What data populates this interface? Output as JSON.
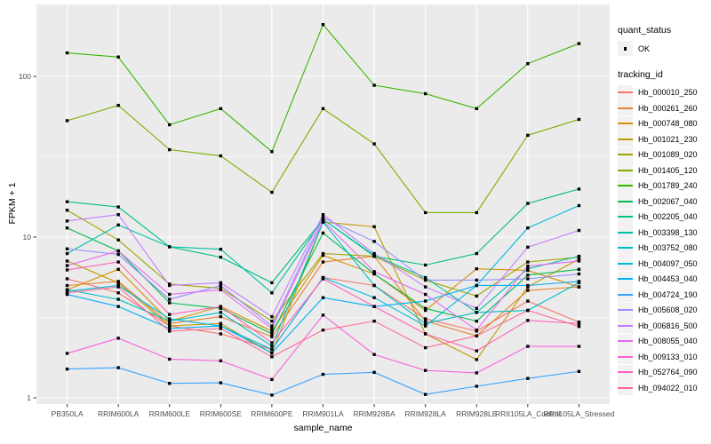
{
  "figure": {
    "panel_bg": "#EBEBEB",
    "grid_color": "#FFFFFF",
    "tick_mark_color": "#333333",
    "tick_label_color": "#4D4D4D",
    "text_color": "#000000"
  },
  "legend": {
    "quant_status": {
      "title": "quant_status",
      "items": [
        {
          "label": "OK",
          "marker": "black-square"
        }
      ]
    },
    "tracking_id": {
      "title": "tracking_id"
    }
  },
  "chart_data": {
    "type": "line",
    "title": "",
    "xlabel": "sample_name",
    "ylabel": "FPKM + 1",
    "y_scale": "log10",
    "y_ticks": [
      "1",
      "10",
      "100"
    ],
    "y_tick_values": [
      1,
      10,
      100
    ],
    "y_minor_values": [
      3.1623,
      31.6228
    ],
    "ylim": [
      0.92,
      255
    ],
    "grid": true,
    "legend_position": "right",
    "marker": "black-square",
    "quant_status": "OK",
    "categories": [
      "PB350LA",
      "RRIM600LA",
      "RRIM600LE",
      "RRIM600SE",
      "RRIM600PE",
      "RRIM901LA",
      "RRIM928BA",
      "RRIM928LA",
      "RRIM928LE",
      "RRII105LA_Control",
      "RRII105LA_Stressed"
    ],
    "series": [
      {
        "name": "Hb_000010_250",
        "color": "#F8766D",
        "values": [
          5.5,
          4.5,
          2.8,
          2.5,
          2.0,
          5.6,
          5.0,
          3.1,
          2.6,
          4.0,
          2.96
        ]
      },
      {
        "name": "Hb_000261_260",
        "color": "#EA8331",
        "values": [
          5.0,
          5.3,
          2.9,
          3.2,
          2.4,
          7.0,
          7.6,
          3.0,
          2.43,
          4.66,
          4.9
        ]
      },
      {
        "name": "Hb_000748_080",
        "color": "#D89000",
        "values": [
          4.7,
          6.3,
          3.0,
          3.7,
          2.6,
          7.7,
          5.9,
          3.5,
          6.35,
          6.2,
          4.9
        ]
      },
      {
        "name": "Hb_001021_230",
        "color": "#C09B00",
        "values": [
          7.1,
          5.2,
          2.8,
          2.9,
          1.9,
          12.4,
          11.6,
          2.5,
          1.73,
          4.9,
          7.3
        ]
      },
      {
        "name": "Hb_001089_020",
        "color": "#A3A500",
        "values": [
          14.7,
          9.6,
          5.1,
          4.8,
          3.0,
          7.9,
          7.6,
          5.4,
          4.3,
          7.0,
          7.5
        ]
      },
      {
        "name": "Hb_001405_120",
        "color": "#7CAE00",
        "values": [
          53,
          66,
          35,
          32,
          19,
          63,
          38,
          14.2,
          14.2,
          43,
          54
        ]
      },
      {
        "name": "Hb_001789_240",
        "color": "#39B600",
        "values": [
          140,
          132,
          50,
          63,
          34,
          210,
          88,
          78,
          63,
          120,
          160
        ]
      },
      {
        "name": "Hb_002067_040",
        "color": "#00BB4E",
        "values": [
          11.4,
          8.2,
          3.9,
          3.6,
          2.5,
          10.6,
          5.9,
          3.6,
          3.0,
          5.8,
          6.3
        ]
      },
      {
        "name": "Hb_002205_040",
        "color": "#00BF7D",
        "values": [
          16.6,
          15.4,
          8.7,
          7.5,
          5.2,
          12.9,
          7.6,
          6.7,
          7.9,
          16.2,
          19.9
        ]
      },
      {
        "name": "Hb_003398_130",
        "color": "#00C1A3",
        "values": [
          7.9,
          11.9,
          8.7,
          8.4,
          4.5,
          12.9,
          7.7,
          5.6,
          3.4,
          6.35,
          7.6
        ]
      },
      {
        "name": "Hb_003752_080",
        "color": "#00BFC4",
        "values": [
          4.7,
          4.1,
          3.0,
          3.4,
          2.1,
          12.4,
          5.0,
          2.9,
          3.4,
          3.5,
          5.2
        ]
      },
      {
        "name": "Hb_004097_050",
        "color": "#00BAE0",
        "values": [
          4.6,
          5.0,
          3.1,
          2.8,
          2.0,
          5.6,
          4.2,
          2.8,
          5.0,
          11.4,
          15.7
        ]
      },
      {
        "name": "Hb_004453_040",
        "color": "#00B0F6",
        "values": [
          4.4,
          3.7,
          2.7,
          2.8,
          1.9,
          4.2,
          3.7,
          4.0,
          5.0,
          5.0,
          5.3
        ]
      },
      {
        "name": "Hb_004724_190",
        "color": "#35A2FF",
        "values": [
          1.51,
          1.54,
          1.23,
          1.24,
          1.04,
          1.4,
          1.44,
          1.05,
          1.18,
          1.32,
          1.46
        ]
      },
      {
        "name": "Hb_005608_020",
        "color": "#9590FF",
        "values": [
          8.45,
          7.8,
          4.1,
          5.0,
          2.8,
          13.2,
          9.4,
          5.4,
          5.4,
          5.5,
          5.9
        ]
      },
      {
        "name": "Hb_006816_500",
        "color": "#C77CFF",
        "values": [
          12.6,
          13.8,
          5.0,
          5.2,
          3.2,
          13.8,
          7.9,
          4.9,
          3.6,
          8.66,
          11.0
        ]
      },
      {
        "name": "Hb_008055_040",
        "color": "#E76BF3",
        "values": [
          6.65,
          8.2,
          4.4,
          4.7,
          2.7,
          12.6,
          6.1,
          4.4,
          2.64,
          6.6,
          7.1
        ]
      },
      {
        "name": "Hb_009133_010",
        "color": "#FA62DB",
        "values": [
          1.89,
          2.35,
          1.74,
          1.7,
          1.3,
          3.27,
          1.86,
          1.48,
          1.43,
          2.09,
          2.09
        ]
      },
      {
        "name": "Hb_052764_090",
        "color": "#FF62BC",
        "values": [
          6.25,
          7.0,
          3.3,
          3.7,
          2.2,
          5.5,
          3.7,
          2.5,
          1.96,
          3.03,
          2.9
        ]
      },
      {
        "name": "Hb_094022_010",
        "color": "#FF6A98",
        "values": [
          4.5,
          4.9,
          2.6,
          2.7,
          1.8,
          2.64,
          3.0,
          2.05,
          2.43,
          3.5,
          2.78
        ]
      }
    ]
  }
}
